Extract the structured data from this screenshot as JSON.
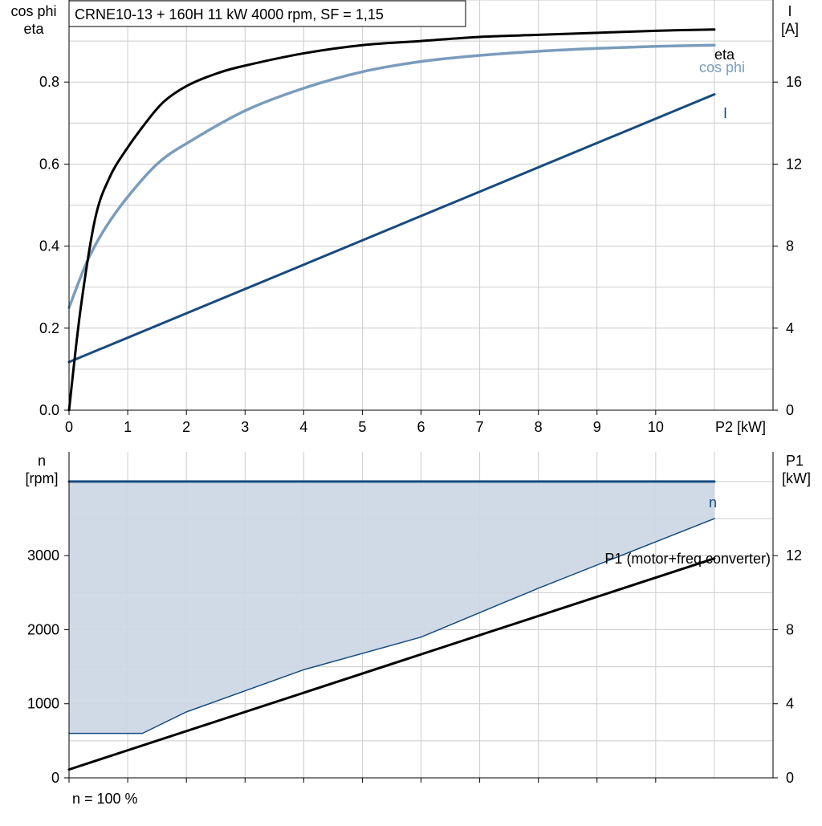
{
  "colors": {
    "eta": "#000000",
    "cos_phi": "#7a9cbc",
    "current": "#174b7e",
    "n": "#174b7e",
    "n_area": "#cfdae6",
    "n_area_edge": "#174b7e",
    "p1": "#000000",
    "grid": "#cccccc",
    "axis": "#000000"
  },
  "chart_data": [
    {
      "type": "line",
      "title": "CRNE10-13 + 160H   11 kW   4000 rpm, SF = 1,15",
      "xlabel": "P2 [kW]",
      "ylabel_left": [
        "cos phi",
        "eta"
      ],
      "ylabel_right": [
        "I",
        "[A]"
      ],
      "xlim": [
        0,
        12
      ],
      "ylim_left": [
        0,
        1.0
      ],
      "ylim_right": [
        0,
        20
      ],
      "x_ticks": [
        0,
        1,
        2,
        3,
        4,
        5,
        6,
        7,
        8,
        9,
        10
      ],
      "x_tick_labels": [
        "0",
        "1",
        "2",
        "3",
        "4",
        "5",
        "6",
        "7",
        "8",
        "9",
        "10"
      ],
      "y_ticks_left": [
        0.0,
        0.2,
        0.4,
        0.6,
        0.8
      ],
      "y_tick_labels_left": [
        "0.0",
        "0.2",
        "0.4",
        "0.6",
        "0.8"
      ],
      "y_ticks_right": [
        0,
        4,
        8,
        12,
        16
      ],
      "y_tick_labels_right": [
        "0",
        "4",
        "8",
        "12",
        "16"
      ],
      "grid": true,
      "series": [
        {
          "name": "eta",
          "axis": "left",
          "x": [
            0,
            0.2,
            0.45,
            0.7,
            0.95,
            1.25,
            1.6,
            2.0,
            2.5,
            3.0,
            4.0,
            5.0,
            6.0,
            7.0,
            8.0,
            9.0,
            10.0,
            11.0
          ],
          "y": [
            0.0,
            0.25,
            0.47,
            0.57,
            0.63,
            0.69,
            0.75,
            0.79,
            0.82,
            0.84,
            0.87,
            0.89,
            0.9,
            0.91,
            0.915,
            0.92,
            0.925,
            0.928
          ]
        },
        {
          "name": "cos phi",
          "axis": "left",
          "x": [
            0,
            0.3,
            0.6,
            1.0,
            1.5,
            2.0,
            3.0,
            4.0,
            5.0,
            6.0,
            7.0,
            8.0,
            9.0,
            10.0,
            11.0
          ],
          "y": [
            0.25,
            0.36,
            0.44,
            0.52,
            0.6,
            0.65,
            0.73,
            0.785,
            0.825,
            0.85,
            0.865,
            0.875,
            0.882,
            0.887,
            0.89
          ]
        },
        {
          "name": "I",
          "axis": "right",
          "x": [
            0,
            11.0
          ],
          "y": [
            2.35,
            15.4
          ]
        }
      ]
    },
    {
      "type": "line",
      "xlabel": "",
      "ylabel_left": [
        "n",
        "[rpm]"
      ],
      "ylabel_right": [
        "P1",
        "[kW]"
      ],
      "xlim": [
        0,
        12
      ],
      "ylim_left": [
        0,
        4400
      ],
      "ylim_right": [
        0,
        17.6
      ],
      "x_ticks": [
        0,
        1,
        2,
        3,
        4,
        5,
        6,
        7,
        8,
        9,
        10
      ],
      "y_ticks_left": [
        0,
        1000,
        2000,
        3000
      ],
      "y_tick_labels_left": [
        "0",
        "1000",
        "2000",
        "3000"
      ],
      "y_ticks_right": [
        0,
        4,
        8,
        12
      ],
      "y_tick_labels_right": [
        "0",
        "4",
        "8",
        "12"
      ],
      "grid": true,
      "footnote": "n = 100 %",
      "series": [
        {
          "name": "n",
          "axis": "left",
          "x": [
            0,
            11.0
          ],
          "y": [
            4000,
            4000
          ]
        },
        {
          "name": "P1 (motor+freq.converter)",
          "axis": "right",
          "x": [
            0,
            11.0
          ],
          "y": [
            0.45,
            11.85
          ]
        }
      ],
      "area": {
        "axis": "left",
        "upper_x": [
          0,
          11.0
        ],
        "upper_y": [
          4000,
          4000
        ],
        "lower_x": [
          0,
          1.25,
          2.0,
          4.0,
          6.0,
          8.0,
          11.0
        ],
        "lower_y": [
          600,
          600,
          890,
          1460,
          1900,
          2560,
          3500
        ]
      }
    }
  ]
}
